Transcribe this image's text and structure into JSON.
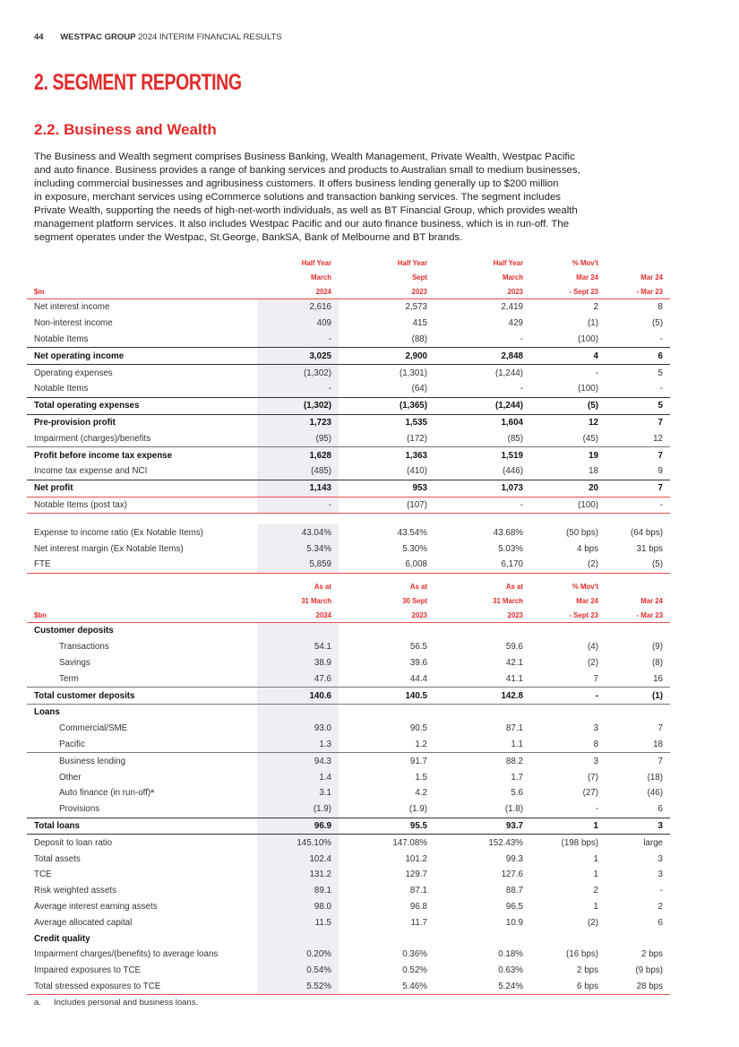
{
  "header": {
    "page_number": "44",
    "brand": "WESTPAC GROUP",
    "doc_title": "2024 INTERIM FINANCIAL RESULTS"
  },
  "section_title": "2. SEGMENT REPORTING",
  "subsection_title": "2.2. Business and Wealth",
  "paragraph_lines": [
    "The Business and Wealth segment comprises Business Banking, Wealth Management, Private Wealth, Westpac Pacific",
    "and auto finance. Business provides a range of banking services and products to Australian small to medium businesses,",
    "including commercial businesses and agribusiness customers. It offers business lending generally up to $200 million",
    "in exposure, merchant services using eCommerce solutions and transaction banking services. The segment includes",
    "Private Wealth, supporting the needs of high-net-worth individuals, as well as BT Financial Group, which provides wealth",
    "management platform services. It also includes Westpac Pacific and our auto finance business, which is in run-off. The",
    "segment operates under the Westpac, St.George, BankSA, Bank of Melbourne and BT brands."
  ],
  "table1": {
    "header": [
      [
        "",
        "Half Year",
        "Half Year",
        "Half Year",
        "% Mov't",
        ""
      ],
      [
        "",
        "March",
        "Sept",
        "March",
        "Mar 24",
        "Mar 24"
      ],
      [
        "$m",
        "2024",
        "2023",
        "2023",
        "- Sept 23",
        "- Mar 23"
      ]
    ],
    "rows": [
      {
        "label": "Net interest income",
        "v": [
          "2,616",
          "2,573",
          "2,419",
          "2",
          "8"
        ]
      },
      {
        "label": "Non-interest income",
        "v": [
          "409",
          "415",
          "429",
          "(1)",
          "(5)"
        ]
      },
      {
        "label": "Notable Items",
        "v": [
          "-",
          "(88)",
          "-",
          "(100)",
          "-"
        ],
        "border": "dark"
      },
      {
        "label": "Net operating income",
        "v": [
          "3,025",
          "2,900",
          "2,848",
          "4",
          "6"
        ],
        "bold": true,
        "border": "dark"
      },
      {
        "label": "Operating expenses",
        "v": [
          "(1,302)",
          "(1,301)",
          "(1,244)",
          "-",
          "5"
        ]
      },
      {
        "label": "Notable Items",
        "v": [
          "-",
          "(64)",
          "-",
          "(100)",
          "-"
        ],
        "border": "dark"
      },
      {
        "label": "Total operating expenses",
        "v": [
          "(1,302)",
          "(1,365)",
          "(1,244)",
          "(5)",
          "5"
        ],
        "bold": true,
        "border": "dark"
      },
      {
        "label": "Pre-provision profit",
        "v": [
          "1,723",
          "1,535",
          "1,604",
          "12",
          "7"
        ],
        "bold": true
      },
      {
        "label": "Impairment (charges)/benefits",
        "v": [
          "(95)",
          "(172)",
          "(85)",
          "(45)",
          "12"
        ],
        "border": "gray"
      },
      {
        "label": "Profit before income tax expense",
        "v": [
          "1,628",
          "1,363",
          "1,519",
          "19",
          "7"
        ],
        "bold": true
      },
      {
        "label": "Income tax expense and NCI",
        "v": [
          "(485)",
          "(410)",
          "(446)",
          "18",
          "9"
        ],
        "border": "dark"
      },
      {
        "label": "Net profit",
        "v": [
          "1,143",
          "953",
          "1,073",
          "20",
          "7"
        ],
        "bold": true,
        "border": "red"
      },
      {
        "label": "Notable Items (post tax)",
        "v": [
          "-",
          "(107)",
          "-",
          "(100)",
          "-"
        ],
        "border": "red"
      },
      {
        "gap": true
      },
      {
        "label": "Expense to income ratio (Ex Notable Items)",
        "v": [
          "43.04%",
          "43.54%",
          "43.68%",
          "(50 bps)",
          "(64 bps)"
        ]
      },
      {
        "label": "Net interest margin (Ex Notable Items)",
        "v": [
          "5.34%",
          "5.30%",
          "5.03%",
          "4 bps",
          "31 bps"
        ]
      },
      {
        "label": "FTE",
        "v": [
          "5,859",
          "6,008",
          "6,170",
          "(2)",
          "(5)"
        ],
        "border": "red"
      }
    ]
  },
  "table2": {
    "header": [
      [
        "",
        "As at",
        "As at",
        "As at",
        "% Mov't",
        ""
      ],
      [
        "",
        "31 March",
        "30 Sept",
        "31 March",
        "Mar 24",
        "Mar 24"
      ],
      [
        "$bn",
        "2024",
        "2023",
        "2023",
        "- Sept 23",
        "- Mar 23"
      ]
    ],
    "rows": [
      {
        "label": "Customer deposits",
        "v": [
          "",
          "",
          "",
          "",
          ""
        ],
        "bold": true
      },
      {
        "label": "Transactions",
        "v": [
          "54.1",
          "56.5",
          "59.6",
          "(4)",
          "(9)"
        ],
        "indent": true
      },
      {
        "label": "Savings",
        "v": [
          "38.9",
          "39.6",
          "42.1",
          "(2)",
          "(8)"
        ],
        "indent": true
      },
      {
        "label": "Term",
        "v": [
          "47.6",
          "44.4",
          "41.1",
          "7",
          "16"
        ],
        "indent": true,
        "border": "gray"
      },
      {
        "label": "Total customer deposits",
        "v": [
          "140.6",
          "140.5",
          "142.8",
          "-",
          "(1)"
        ],
        "bold": true,
        "border": "gray"
      },
      {
        "label": "Loans",
        "v": [
          "",
          "",
          "",
          "",
          ""
        ],
        "bold": true
      },
      {
        "label": "Commercial/SME",
        "v": [
          "93.0",
          "90.5",
          "87.1",
          "3",
          "7"
        ],
        "indent": true
      },
      {
        "label": "Pacific",
        "v": [
          "1.3",
          "1.2",
          "1.1",
          "8",
          "18"
        ],
        "indent": true,
        "border": "gray"
      },
      {
        "label": "Business lending",
        "v": [
          "94.3",
          "91.7",
          "88.2",
          "3",
          "7"
        ],
        "indent": true
      },
      {
        "label": "Other",
        "v": [
          "1.4",
          "1.5",
          "1.7",
          "(7)",
          "(18)"
        ],
        "indent": true
      },
      {
        "label": "Auto finance (in run-off)ª",
        "v": [
          "3.1",
          "4.2",
          "5.6",
          "(27)",
          "(46)"
        ],
        "indent": true
      },
      {
        "label": "Provisions",
        "v": [
          "(1.9)",
          "(1.9)",
          "(1.8)",
          "-",
          "6"
        ],
        "indent": true,
        "border": "dark"
      },
      {
        "label": "Total loans",
        "v": [
          "96.9",
          "95.5",
          "93.7",
          "1",
          "3"
        ],
        "bold": true,
        "border": "dark"
      },
      {
        "label": "Deposit to loan ratio",
        "v": [
          "145.10%",
          "147.08%",
          "152.43%",
          "(198 bps)",
          "large"
        ]
      },
      {
        "label": "Total assets",
        "v": [
          "102.4",
          "101.2",
          "99.3",
          "1",
          "3"
        ]
      },
      {
        "label": "TCE",
        "v": [
          "131.2",
          "129.7",
          "127.6",
          "1",
          "3"
        ]
      },
      {
        "label": "Risk weighted assets",
        "v": [
          "89.1",
          "87.1",
          "88.7",
          "2",
          "-"
        ]
      },
      {
        "label": "Average interest earning assets",
        "v": [
          "98.0",
          "96.8",
          "96.5",
          "1",
          "2"
        ]
      },
      {
        "label": "Average allocated capital",
        "v": [
          "11.5",
          "11.7",
          "10.9",
          "(2)",
          "6"
        ]
      },
      {
        "label": "Credit quality",
        "v": [
          "",
          "",
          "",
          "",
          ""
        ],
        "bold": true
      },
      {
        "label": "Impairment charges/(benefits) to average loans",
        "v": [
          "0.20%",
          "0.36%",
          "0.18%",
          "(16 bps)",
          "2 bps"
        ]
      },
      {
        "label": "Impaired exposures to TCE",
        "v": [
          "0.54%",
          "0.52%",
          "0.63%",
          "2 bps",
          "(9 bps)"
        ]
      },
      {
        "label": "Total stressed exposures to TCE",
        "v": [
          "5.52%",
          "5.46%",
          "5.24%",
          "6 bps",
          "28 bps"
        ],
        "border": "red"
      }
    ]
  },
  "footnote": {
    "marker": "a.",
    "text": "Includes personal and business loans."
  },
  "colors": {
    "accent": "#e32b2b",
    "shade": "#f0edf3"
  }
}
